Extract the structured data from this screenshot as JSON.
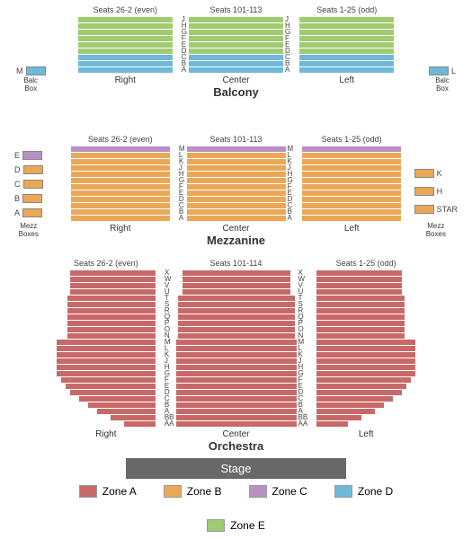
{
  "colors": {
    "zoneA": "#c86969",
    "zoneB": "#eaa857",
    "zoneC": "#b990c5",
    "zoneD": "#6fb9d8",
    "zoneE": "#a0cb71",
    "stage": "#686868"
  },
  "balcony": {
    "title": "Balcony",
    "seat_headers": [
      "Seats 26-2 (even)",
      "Seats 101-113",
      "Seats 1-25 (odd)"
    ],
    "section_labels": [
      "Right",
      "Center",
      "Left"
    ],
    "row_letters": [
      "J",
      "H",
      "G",
      "F",
      "E",
      "D",
      "C",
      "B",
      "A"
    ],
    "row_colors": [
      "#a0cb71",
      "#a0cb71",
      "#a0cb71",
      "#a0cb71",
      "#a0cb71",
      "#a0cb71",
      "#6fb9d8",
      "#6fb9d8",
      "#6fb9d8"
    ],
    "section_width": 105,
    "side_boxes": {
      "left": {
        "letter": "M",
        "label": "Balc\nBox",
        "color": "#6fb9d8"
      },
      "right": {
        "letter": "L",
        "label": "Balc\nBox",
        "color": "#6fb9d8"
      }
    }
  },
  "mezzanine": {
    "title": "Mezzanine",
    "seat_headers": [
      "Seats 26-2 (even)",
      "Seats 101-113",
      "Seats 1-25 (odd)"
    ],
    "section_labels": [
      "Right",
      "Center",
      "Left"
    ],
    "row_letters": [
      "M",
      "L",
      "K",
      "J",
      "H",
      "G",
      "F",
      "E",
      "D",
      "C",
      "B",
      "A"
    ],
    "row_colors": [
      "#b990c5",
      "#eaa857",
      "#eaa857",
      "#eaa857",
      "#eaa857",
      "#eaa857",
      "#eaa857",
      "#eaa857",
      "#eaa857",
      "#eaa857",
      "#eaa857",
      "#eaa857"
    ],
    "section_width": 110,
    "side_boxes_left": [
      {
        "letter": "E",
        "color": "#b990c5"
      },
      {
        "letter": "D",
        "color": "#eaa857"
      },
      {
        "letter": "C",
        "color": "#eaa857"
      },
      {
        "letter": "B",
        "color": "#eaa857"
      },
      {
        "letter": "A",
        "color": "#eaa857"
      }
    ],
    "side_boxes_right": [
      {
        "letter": "K",
        "color": "#eaa857"
      },
      {
        "letter": "H",
        "color": "#eaa857"
      },
      {
        "letter": "STAR",
        "color": "#eaa857"
      }
    ],
    "side_label_left": "Mezz\nBoxes",
    "side_label_right": "Mezz\nBoxes"
  },
  "orchestra": {
    "title": "Orchestra",
    "seat_headers": [
      "Seats 26-2 (even)",
      "Seats 101-114",
      "Seats 1-25 (odd)"
    ],
    "section_labels": [
      "Right",
      "Center",
      "Left"
    ],
    "row_letters": [
      "X",
      "W",
      "V",
      "U",
      "T",
      "S",
      "R",
      "Q",
      "P",
      "O",
      "N",
      "M",
      "L",
      "K",
      "J",
      "H",
      "G",
      "F",
      "E",
      "D",
      "C",
      "B",
      "A",
      "BB",
      "AA"
    ],
    "row_letters_side": [
      "X",
      "W",
      "V",
      "U",
      "T",
      "S",
      "R",
      "Q",
      "P",
      "O",
      "N",
      "M",
      "L",
      "K",
      "J",
      "H",
      "G",
      "F",
      "E",
      "D",
      "C",
      "B",
      "A",
      "BB",
      "AA"
    ],
    "color": "#c86969",
    "center_widths": [
      120,
      120,
      120,
      120,
      130,
      130,
      130,
      130,
      130,
      130,
      130,
      134,
      134,
      134,
      134,
      134,
      134,
      134,
      134,
      134,
      134,
      134,
      134,
      134,
      134
    ],
    "side_widths": [
      95,
      95,
      95,
      95,
      98,
      98,
      98,
      98,
      98,
      98,
      98,
      110,
      110,
      110,
      110,
      110,
      110,
      105,
      100,
      95,
      85,
      75,
      65,
      50,
      35
    ]
  },
  "stage_label": "Stage",
  "legend": [
    {
      "label": "Zone A",
      "color": "#c86969"
    },
    {
      "label": "Zone B",
      "color": "#eaa857"
    },
    {
      "label": "Zone C",
      "color": "#b990c5"
    },
    {
      "label": "Zone D",
      "color": "#6fb9d8"
    },
    {
      "label": "Zone E",
      "color": "#a0cb71"
    }
  ]
}
